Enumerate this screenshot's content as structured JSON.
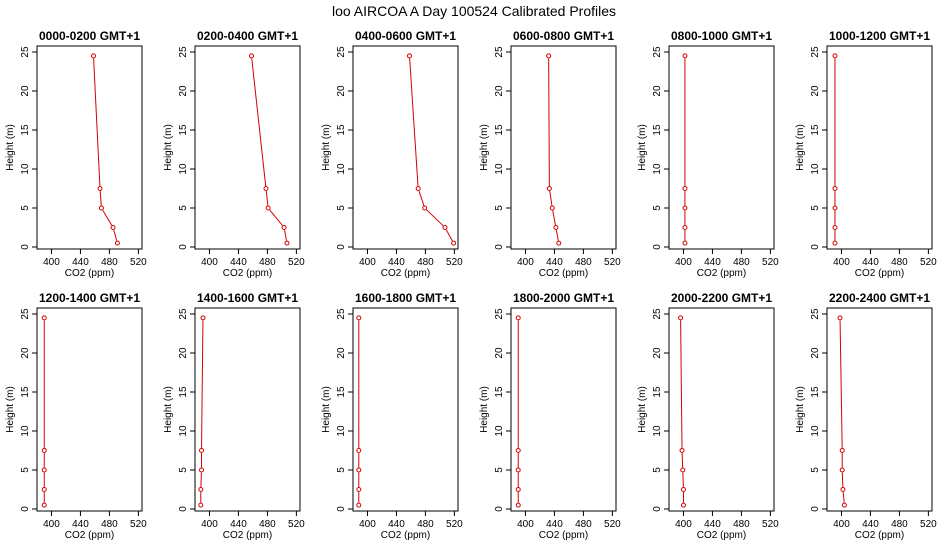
{
  "title": "loo AIRCOA A  Day 100524  Calibrated Profiles",
  "colors": {
    "series": "#d40000",
    "axis": "#000000",
    "background": "#ffffff"
  },
  "chart_data": [
    {
      "type": "line",
      "title": "0000-0200 GMT+1",
      "xlabel": "CO2 (ppm)",
      "ylabel": "Height (m)",
      "xlim": [
        380,
        525
      ],
      "ylim": [
        0,
        25
      ],
      "xticks": [
        400,
        440,
        480,
        520
      ],
      "yticks": [
        0,
        5,
        10,
        15,
        20,
        25
      ],
      "heights": [
        0.5,
        2.5,
        5,
        7.5,
        24.5
      ],
      "values": [
        491,
        485,
        469,
        467,
        458
      ]
    },
    {
      "type": "line",
      "title": "0200-0400 GMT+1",
      "xlabel": "CO2 (ppm)",
      "ylabel": "Height (m)",
      "xlim": [
        380,
        525
      ],
      "ylim": [
        0,
        25
      ],
      "xticks": [
        400,
        440,
        480,
        520
      ],
      "yticks": [
        0,
        5,
        10,
        15,
        20,
        25
      ],
      "heights": [
        0.5,
        2.5,
        5,
        7.5,
        24.5
      ],
      "values": [
        507,
        503,
        481,
        478,
        458
      ]
    },
    {
      "type": "line",
      "title": "0400-0600 GMT+1",
      "xlabel": "CO2 (ppm)",
      "ylabel": "Height (m)",
      "xlim": [
        380,
        525
      ],
      "ylim": [
        0,
        25
      ],
      "xticks": [
        400,
        440,
        480,
        520
      ],
      "yticks": [
        0,
        5,
        10,
        15,
        20,
        25
      ],
      "heights": [
        0.5,
        2.5,
        5,
        7.5,
        24.5
      ],
      "values": [
        519,
        507,
        479,
        470,
        458
      ]
    },
    {
      "type": "line",
      "title": "0600-0800 GMT+1",
      "xlabel": "CO2 (ppm)",
      "ylabel": "Height (m)",
      "xlim": [
        380,
        525
      ],
      "ylim": [
        0,
        25
      ],
      "xticks": [
        400,
        440,
        480,
        520
      ],
      "yticks": [
        0,
        5,
        10,
        15,
        20,
        25
      ],
      "heights": [
        0.5,
        2.5,
        5,
        7.5,
        24.5
      ],
      "values": [
        446,
        442,
        437,
        433,
        432
      ]
    },
    {
      "type": "line",
      "title": "0800-1000 GMT+1",
      "xlabel": "CO2 (ppm)",
      "ylabel": "Height (m)",
      "xlim": [
        380,
        525
      ],
      "ylim": [
        0,
        25
      ],
      "xticks": [
        400,
        440,
        480,
        520
      ],
      "yticks": [
        0,
        5,
        10,
        15,
        20,
        25
      ],
      "heights": [
        0.5,
        2.5,
        5,
        7.5,
        24.5
      ],
      "values": [
        402,
        402,
        402,
        402,
        402
      ]
    },
    {
      "type": "line",
      "title": "1000-1200 GMT+1",
      "xlabel": "CO2 (ppm)",
      "ylabel": "Height (m)",
      "xlim": [
        380,
        525
      ],
      "ylim": [
        0,
        25
      ],
      "xticks": [
        400,
        440,
        480,
        520
      ],
      "yticks": [
        0,
        5,
        10,
        15,
        20,
        25
      ],
      "heights": [
        0.5,
        2.5,
        5,
        7.5,
        24.5
      ],
      "values": [
        391,
        391,
        391,
        391,
        391
      ]
    },
    {
      "type": "line",
      "title": "1200-1400 GMT+1",
      "xlabel": "CO2 (ppm)",
      "ylabel": "Height (m)",
      "xlim": [
        380,
        525
      ],
      "ylim": [
        0,
        25
      ],
      "xticks": [
        400,
        440,
        480,
        520
      ],
      "yticks": [
        0,
        5,
        10,
        15,
        20,
        25
      ],
      "heights": [
        0.5,
        2.5,
        5,
        7.5,
        24.5
      ],
      "values": [
        390,
        390,
        390,
        390,
        390
      ]
    },
    {
      "type": "line",
      "title": "1400-1600 GMT+1",
      "xlabel": "CO2 (ppm)",
      "ylabel": "Height (m)",
      "xlim": [
        380,
        525
      ],
      "ylim": [
        0,
        25
      ],
      "xticks": [
        400,
        440,
        480,
        520
      ],
      "yticks": [
        0,
        5,
        10,
        15,
        20,
        25
      ],
      "heights": [
        0.5,
        2.5,
        5,
        7.5,
        24.5
      ],
      "values": [
        388,
        388,
        389,
        389,
        391
      ]
    },
    {
      "type": "line",
      "title": "1600-1800 GMT+1",
      "xlabel": "CO2 (ppm)",
      "ylabel": "Height (m)",
      "xlim": [
        380,
        525
      ],
      "ylim": [
        0,
        25
      ],
      "xticks": [
        400,
        440,
        480,
        520
      ],
      "yticks": [
        0,
        5,
        10,
        15,
        20,
        25
      ],
      "heights": [
        0.5,
        2.5,
        5,
        7.5,
        24.5
      ],
      "values": [
        388,
        388,
        388,
        388,
        388
      ]
    },
    {
      "type": "line",
      "title": "1800-2000 GMT+1",
      "xlabel": "CO2 (ppm)",
      "ylabel": "Height (m)",
      "xlim": [
        380,
        525
      ],
      "ylim": [
        0,
        25
      ],
      "xticks": [
        400,
        440,
        480,
        520
      ],
      "yticks": [
        0,
        5,
        10,
        15,
        20,
        25
      ],
      "heights": [
        0.5,
        2.5,
        5,
        7.5,
        24.5
      ],
      "values": [
        390,
        390,
        390,
        390,
        390
      ]
    },
    {
      "type": "line",
      "title": "2000-2200 GMT+1",
      "xlabel": "CO2 (ppm)",
      "ylabel": "Height (m)",
      "xlim": [
        380,
        525
      ],
      "ylim": [
        0,
        25
      ],
      "xticks": [
        400,
        440,
        480,
        520
      ],
      "yticks": [
        0,
        5,
        10,
        15,
        20,
        25
      ],
      "heights": [
        0.5,
        2.5,
        5,
        7.5,
        24.5
      ],
      "values": [
        400,
        400,
        399,
        398,
        396
      ]
    },
    {
      "type": "line",
      "title": "2200-2400 GMT+1",
      "xlabel": "CO2 (ppm)",
      "ylabel": "Height (m)",
      "xlim": [
        380,
        525
      ],
      "ylim": [
        0,
        25
      ],
      "xticks": [
        400,
        440,
        480,
        520
      ],
      "yticks": [
        0,
        5,
        10,
        15,
        20,
        25
      ],
      "heights": [
        0.5,
        2.5,
        5,
        7.5,
        24.5
      ],
      "values": [
        404,
        402,
        401,
        401,
        398
      ]
    }
  ]
}
